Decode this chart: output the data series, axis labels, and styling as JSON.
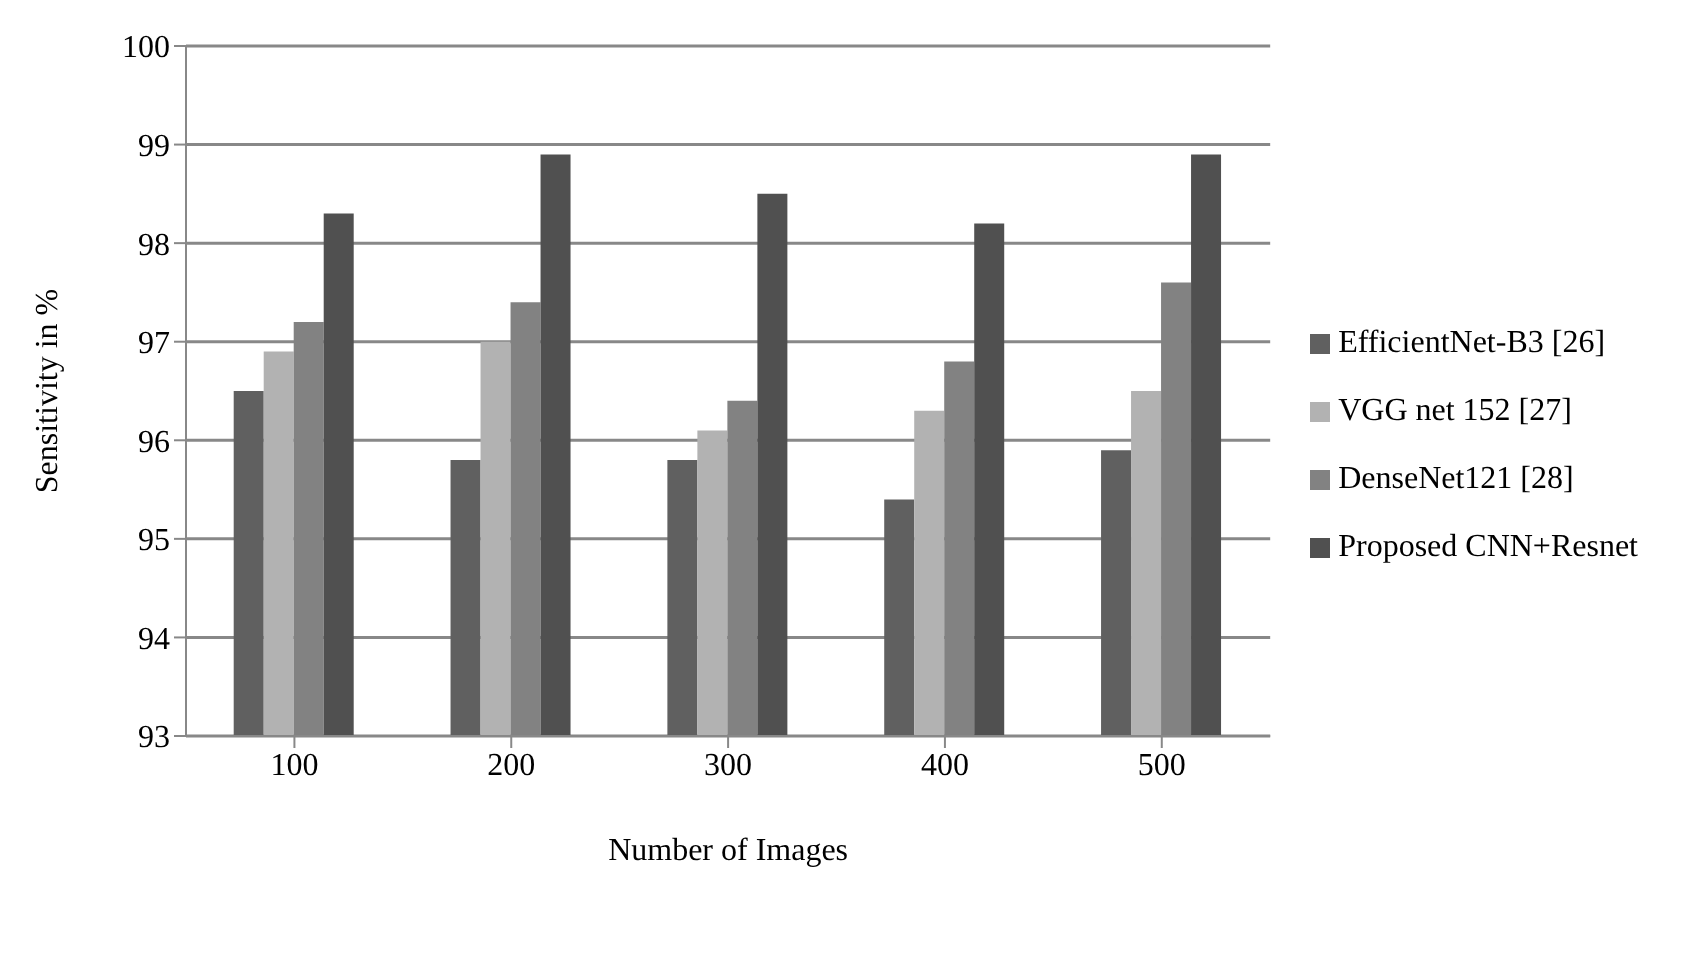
{
  "chart_data": {
    "type": "bar",
    "xlabel": "Number of Images",
    "ylabel": "Sensitivity in %",
    "categories": [
      "100",
      "200",
      "300",
      "400",
      "500"
    ],
    "series": [
      {
        "name": "EfficientNet-B3 [26]",
        "color": "#606060",
        "values": [
          96.5,
          95.8,
          95.8,
          95.4,
          95.9
        ]
      },
      {
        "name": "VGG net 152 [27]",
        "color": "#b2b2b2",
        "values": [
          96.9,
          97.0,
          96.1,
          96.3,
          96.5
        ]
      },
      {
        "name": "DenseNet121 [28]",
        "color": "#828282",
        "values": [
          97.2,
          97.4,
          96.4,
          96.8,
          97.6
        ]
      },
      {
        "name": "Proposed CNN+Resnet",
        "color": "#505050",
        "values": [
          98.3,
          98.9,
          98.5,
          98.2,
          98.9
        ]
      }
    ],
    "ylim": [
      93,
      100
    ],
    "yticks": [
      93,
      94,
      95,
      96,
      97,
      98,
      99,
      100
    ],
    "grid": "y",
    "legend": "right"
  }
}
